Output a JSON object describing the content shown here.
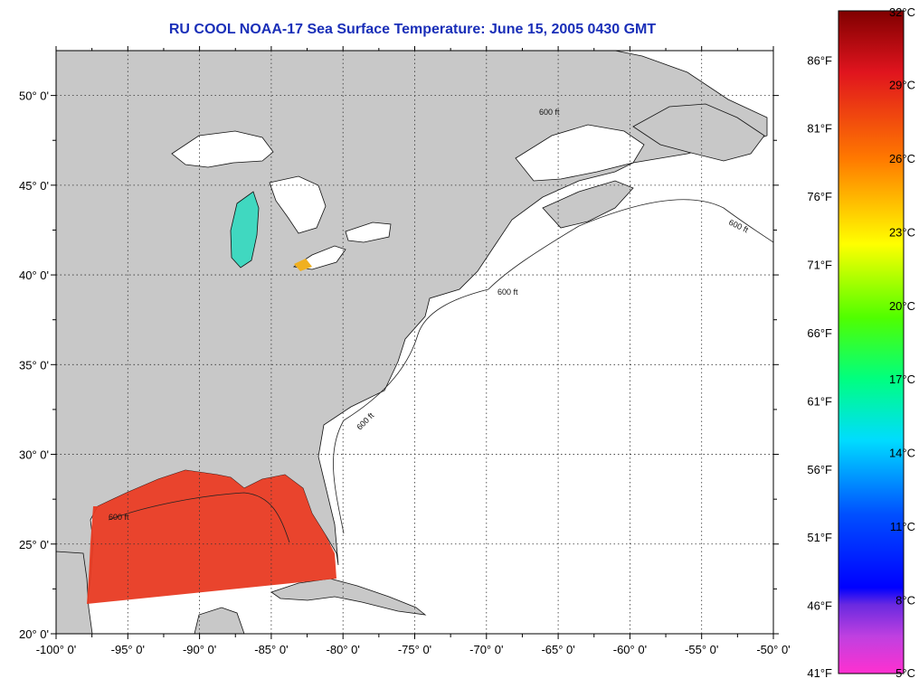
{
  "title": "RU COOL  NOAA-17  Sea Surface Temperature:  June 15, 2005 0430 GMT",
  "map": {
    "lon_range": [
      -100,
      -50
    ],
    "lat_range": [
      20,
      52.5
    ],
    "lon_ticks": [
      {
        "value": -100,
        "label": "-100° 0'"
      },
      {
        "value": -95,
        "label": "-95° 0'"
      },
      {
        "value": -90,
        "label": "-90° 0'"
      },
      {
        "value": -85,
        "label": "-85° 0'"
      },
      {
        "value": -80,
        "label": "-80° 0'"
      },
      {
        "value": -75,
        "label": "-75° 0'"
      },
      {
        "value": -70,
        "label": "-70° 0'"
      },
      {
        "value": -65,
        "label": "-65° 0'"
      },
      {
        "value": -60,
        "label": "-60° 0'"
      },
      {
        "value": -55,
        "label": "-55° 0'"
      },
      {
        "value": -50,
        "label": "-50° 0'"
      }
    ],
    "lat_ticks": [
      {
        "value": 20,
        "label": "20° 0'"
      },
      {
        "value": 25,
        "label": "25° 0'"
      },
      {
        "value": 30,
        "label": "30° 0'"
      },
      {
        "value": 35,
        "label": "35° 0'"
      },
      {
        "value": 40,
        "label": "40° 0'"
      },
      {
        "value": 45,
        "label": "45° 0'"
      },
      {
        "value": 50,
        "label": "50° 0'"
      }
    ],
    "contour_label": "600 ft",
    "colors": {
      "land": "#c8c8c8",
      "ocean": "#ffffff",
      "grid": "#333333",
      "sst_warm": "#e83a22"
    }
  },
  "colorbar": {
    "range_c": [
      5,
      32
    ],
    "celsius_ticks": [
      {
        "value": 32,
        "label": "32°C"
      },
      {
        "value": 29,
        "label": "29°C"
      },
      {
        "value": 26,
        "label": "26°C"
      },
      {
        "value": 23,
        "label": "23°C"
      },
      {
        "value": 20,
        "label": "20°C"
      },
      {
        "value": 17,
        "label": "17°C"
      },
      {
        "value": 14,
        "label": "14°C"
      },
      {
        "value": 11,
        "label": "11°C"
      },
      {
        "value": 8,
        "label": "8°C"
      },
      {
        "value": 5,
        "label": "5°C"
      }
    ],
    "fahrenheit_ticks": [
      {
        "value": 86,
        "label": "86°F"
      },
      {
        "value": 81,
        "label": "81°F"
      },
      {
        "value": 76,
        "label": "76°F"
      },
      {
        "value": 71,
        "label": "71°F"
      },
      {
        "value": 66,
        "label": "66°F"
      },
      {
        "value": 61,
        "label": "61°F"
      },
      {
        "value": 56,
        "label": "56°F"
      },
      {
        "value": 51,
        "label": "51°F"
      },
      {
        "value": 46,
        "label": "46°F"
      },
      {
        "value": 41,
        "label": "41°F"
      }
    ],
    "gradient": [
      {
        "c": 32,
        "color": "#800000"
      },
      {
        "c": 29.5,
        "color": "#e0141e"
      },
      {
        "c": 26,
        "color": "#ff7800"
      },
      {
        "c": 22.5,
        "color": "#ffff00"
      },
      {
        "c": 19.5,
        "color": "#50ff00"
      },
      {
        "c": 17,
        "color": "#00ff80"
      },
      {
        "c": 14.5,
        "color": "#00dcff"
      },
      {
        "c": 11.5,
        "color": "#0050ff"
      },
      {
        "c": 8.5,
        "color": "#0000ff"
      },
      {
        "c": 7.8,
        "color": "#6a2ae0"
      },
      {
        "c": 6.5,
        "color": "#c040e0"
      },
      {
        "c": 5,
        "color": "#ff30d0"
      }
    ]
  }
}
